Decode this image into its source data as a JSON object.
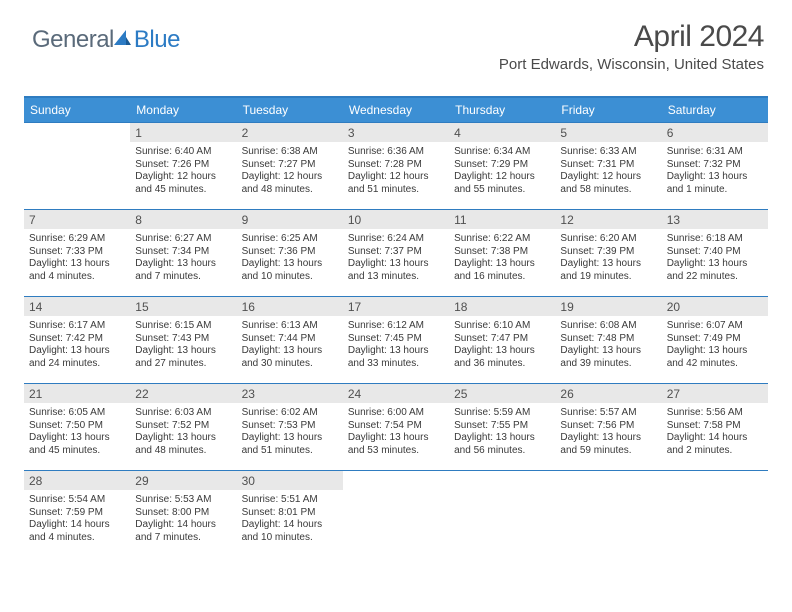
{
  "logo": {
    "text1": "General",
    "text2": "Blue"
  },
  "title": "April 2024",
  "location": "Port Edwards, Wisconsin, United States",
  "colors": {
    "header_bg": "#3c8fd4",
    "border": "#2f7cc0",
    "daynum_bg": "#e8e8e8",
    "text": "#3a3a3a",
    "logo_gray": "#5a6a7a",
    "logo_blue": "#2c7bc4"
  },
  "dow": [
    "Sunday",
    "Monday",
    "Tuesday",
    "Wednesday",
    "Thursday",
    "Friday",
    "Saturday"
  ],
  "weeks": [
    [
      {
        "num": "",
        "sunrise": "",
        "sunset": "",
        "day1": "",
        "day2": ""
      },
      {
        "num": "1",
        "sunrise": "Sunrise: 6:40 AM",
        "sunset": "Sunset: 7:26 PM",
        "day1": "Daylight: 12 hours",
        "day2": "and 45 minutes."
      },
      {
        "num": "2",
        "sunrise": "Sunrise: 6:38 AM",
        "sunset": "Sunset: 7:27 PM",
        "day1": "Daylight: 12 hours",
        "day2": "and 48 minutes."
      },
      {
        "num": "3",
        "sunrise": "Sunrise: 6:36 AM",
        "sunset": "Sunset: 7:28 PM",
        "day1": "Daylight: 12 hours",
        "day2": "and 51 minutes."
      },
      {
        "num": "4",
        "sunrise": "Sunrise: 6:34 AM",
        "sunset": "Sunset: 7:29 PM",
        "day1": "Daylight: 12 hours",
        "day2": "and 55 minutes."
      },
      {
        "num": "5",
        "sunrise": "Sunrise: 6:33 AM",
        "sunset": "Sunset: 7:31 PM",
        "day1": "Daylight: 12 hours",
        "day2": "and 58 minutes."
      },
      {
        "num": "6",
        "sunrise": "Sunrise: 6:31 AM",
        "sunset": "Sunset: 7:32 PM",
        "day1": "Daylight: 13 hours",
        "day2": "and 1 minute."
      }
    ],
    [
      {
        "num": "7",
        "sunrise": "Sunrise: 6:29 AM",
        "sunset": "Sunset: 7:33 PM",
        "day1": "Daylight: 13 hours",
        "day2": "and 4 minutes."
      },
      {
        "num": "8",
        "sunrise": "Sunrise: 6:27 AM",
        "sunset": "Sunset: 7:34 PM",
        "day1": "Daylight: 13 hours",
        "day2": "and 7 minutes."
      },
      {
        "num": "9",
        "sunrise": "Sunrise: 6:25 AM",
        "sunset": "Sunset: 7:36 PM",
        "day1": "Daylight: 13 hours",
        "day2": "and 10 minutes."
      },
      {
        "num": "10",
        "sunrise": "Sunrise: 6:24 AM",
        "sunset": "Sunset: 7:37 PM",
        "day1": "Daylight: 13 hours",
        "day2": "and 13 minutes."
      },
      {
        "num": "11",
        "sunrise": "Sunrise: 6:22 AM",
        "sunset": "Sunset: 7:38 PM",
        "day1": "Daylight: 13 hours",
        "day2": "and 16 minutes."
      },
      {
        "num": "12",
        "sunrise": "Sunrise: 6:20 AM",
        "sunset": "Sunset: 7:39 PM",
        "day1": "Daylight: 13 hours",
        "day2": "and 19 minutes."
      },
      {
        "num": "13",
        "sunrise": "Sunrise: 6:18 AM",
        "sunset": "Sunset: 7:40 PM",
        "day1": "Daylight: 13 hours",
        "day2": "and 22 minutes."
      }
    ],
    [
      {
        "num": "14",
        "sunrise": "Sunrise: 6:17 AM",
        "sunset": "Sunset: 7:42 PM",
        "day1": "Daylight: 13 hours",
        "day2": "and 24 minutes."
      },
      {
        "num": "15",
        "sunrise": "Sunrise: 6:15 AM",
        "sunset": "Sunset: 7:43 PM",
        "day1": "Daylight: 13 hours",
        "day2": "and 27 minutes."
      },
      {
        "num": "16",
        "sunrise": "Sunrise: 6:13 AM",
        "sunset": "Sunset: 7:44 PM",
        "day1": "Daylight: 13 hours",
        "day2": "and 30 minutes."
      },
      {
        "num": "17",
        "sunrise": "Sunrise: 6:12 AM",
        "sunset": "Sunset: 7:45 PM",
        "day1": "Daylight: 13 hours",
        "day2": "and 33 minutes."
      },
      {
        "num": "18",
        "sunrise": "Sunrise: 6:10 AM",
        "sunset": "Sunset: 7:47 PM",
        "day1": "Daylight: 13 hours",
        "day2": "and 36 minutes."
      },
      {
        "num": "19",
        "sunrise": "Sunrise: 6:08 AM",
        "sunset": "Sunset: 7:48 PM",
        "day1": "Daylight: 13 hours",
        "day2": "and 39 minutes."
      },
      {
        "num": "20",
        "sunrise": "Sunrise: 6:07 AM",
        "sunset": "Sunset: 7:49 PM",
        "day1": "Daylight: 13 hours",
        "day2": "and 42 minutes."
      }
    ],
    [
      {
        "num": "21",
        "sunrise": "Sunrise: 6:05 AM",
        "sunset": "Sunset: 7:50 PM",
        "day1": "Daylight: 13 hours",
        "day2": "and 45 minutes."
      },
      {
        "num": "22",
        "sunrise": "Sunrise: 6:03 AM",
        "sunset": "Sunset: 7:52 PM",
        "day1": "Daylight: 13 hours",
        "day2": "and 48 minutes."
      },
      {
        "num": "23",
        "sunrise": "Sunrise: 6:02 AM",
        "sunset": "Sunset: 7:53 PM",
        "day1": "Daylight: 13 hours",
        "day2": "and 51 minutes."
      },
      {
        "num": "24",
        "sunrise": "Sunrise: 6:00 AM",
        "sunset": "Sunset: 7:54 PM",
        "day1": "Daylight: 13 hours",
        "day2": "and 53 minutes."
      },
      {
        "num": "25",
        "sunrise": "Sunrise: 5:59 AM",
        "sunset": "Sunset: 7:55 PM",
        "day1": "Daylight: 13 hours",
        "day2": "and 56 minutes."
      },
      {
        "num": "26",
        "sunrise": "Sunrise: 5:57 AM",
        "sunset": "Sunset: 7:56 PM",
        "day1": "Daylight: 13 hours",
        "day2": "and 59 minutes."
      },
      {
        "num": "27",
        "sunrise": "Sunrise: 5:56 AM",
        "sunset": "Sunset: 7:58 PM",
        "day1": "Daylight: 14 hours",
        "day2": "and 2 minutes."
      }
    ],
    [
      {
        "num": "28",
        "sunrise": "Sunrise: 5:54 AM",
        "sunset": "Sunset: 7:59 PM",
        "day1": "Daylight: 14 hours",
        "day2": "and 4 minutes."
      },
      {
        "num": "29",
        "sunrise": "Sunrise: 5:53 AM",
        "sunset": "Sunset: 8:00 PM",
        "day1": "Daylight: 14 hours",
        "day2": "and 7 minutes."
      },
      {
        "num": "30",
        "sunrise": "Sunrise: 5:51 AM",
        "sunset": "Sunset: 8:01 PM",
        "day1": "Daylight: 14 hours",
        "day2": "and 10 minutes."
      },
      {
        "num": "",
        "sunrise": "",
        "sunset": "",
        "day1": "",
        "day2": ""
      },
      {
        "num": "",
        "sunrise": "",
        "sunset": "",
        "day1": "",
        "day2": ""
      },
      {
        "num": "",
        "sunrise": "",
        "sunset": "",
        "day1": "",
        "day2": ""
      },
      {
        "num": "",
        "sunrise": "",
        "sunset": "",
        "day1": "",
        "day2": ""
      }
    ]
  ]
}
